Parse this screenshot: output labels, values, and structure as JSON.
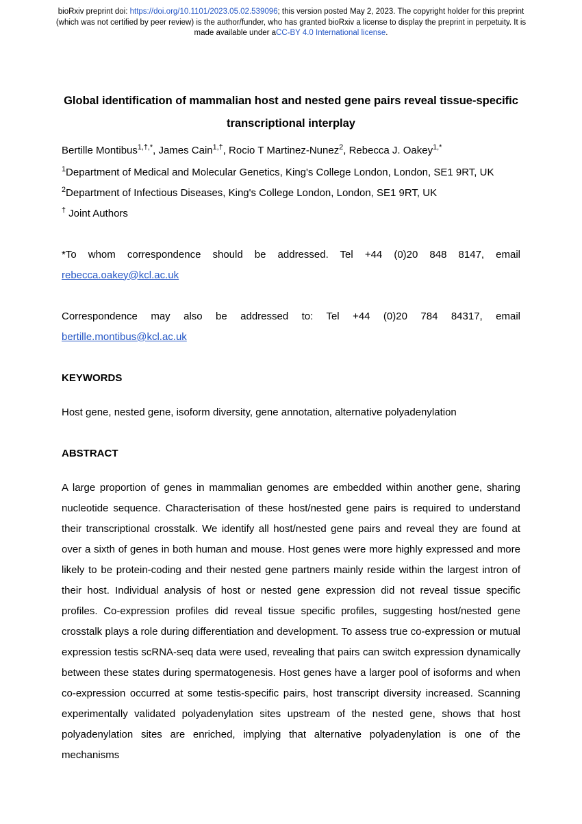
{
  "preprint": {
    "prefix": "bioRxiv preprint doi: ",
    "doi_url": "https://doi.org/10.1101/2023.05.02.539096",
    "middle": "; this version posted May 2, 2023. The copyright holder for this preprint (which was not certified by peer review) is the author/funder, who has granted bioRxiv a license to display the preprint in perpetuity. It is made available under a",
    "license_text": "CC-BY 4.0 International license",
    "suffix": "."
  },
  "title": "Global identification of mammalian host and nested gene pairs reveal tissue-specific transcriptional interplay",
  "authors": [
    {
      "name": "Bertille Montibus",
      "sup": "1,†,*"
    },
    {
      "name": "James Cain",
      "sup": "1,†"
    },
    {
      "name": "Rocio T Martinez-Nunez",
      "sup": "2"
    },
    {
      "name": "Rebecca J. Oakey",
      "sup": "1,*"
    }
  ],
  "affiliations": {
    "a1_sup": "1",
    "a1": "Department of Medical and Molecular Genetics, King's College London, London, SE1 9RT, UK",
    "a2_sup": "2",
    "a2": "Department of Infectious Diseases, King's College London, London, SE1 9RT, UK",
    "joint_sup": "†",
    "joint": " Joint Authors"
  },
  "correspondence": {
    "c1_text": "*To whom correspondence should be addressed. Tel +44 (0)20 848 8147, email ",
    "c1_email": "rebecca.oakey@kcl.ac.uk",
    "c2_text": "Correspondence may also be addressed to: Tel +44 (0)20 784 84317, email ",
    "c2_email": "bertille.montibus@kcl.ac.uk"
  },
  "sections": {
    "keywords_head": "KEYWORDS",
    "keywords_text": "Host gene, nested gene, isoform diversity, gene annotation, alternative polyadenylation",
    "abstract_head": "ABSTRACT",
    "abstract_body": "A large proportion of genes in mammalian genomes are embedded within another gene, sharing nucleotide sequence. Characterisation of these host/nested gene pairs is required to understand their transcriptional crosstalk.  We identify all host/nested gene pairs and reveal they are found at over a sixth of genes in both human and mouse. Host genes were more highly expressed and more likely to be protein-coding and their nested gene partners mainly reside within the largest intron of their host. Individual analysis of host or nested gene expression did not reveal tissue specific profiles. Co-expression profiles did reveal tissue specific profiles, suggesting host/nested gene crosstalk plays a role during differentiation and development. To assess true co-expression or mutual expression testis scRNA-seq data were used, revealing that pairs can switch expression dynamically between these states during spermatogenesis. Host genes have a larger pool of isoforms and when co-expression occurred at some testis-specific pairs, host transcript diversity increased. Scanning experimentally validated polyadenylation sites upstream of the nested gene, shows that host polyadenylation sites are enriched, implying that alternative polyadenylation is one of the mechanisms"
  }
}
